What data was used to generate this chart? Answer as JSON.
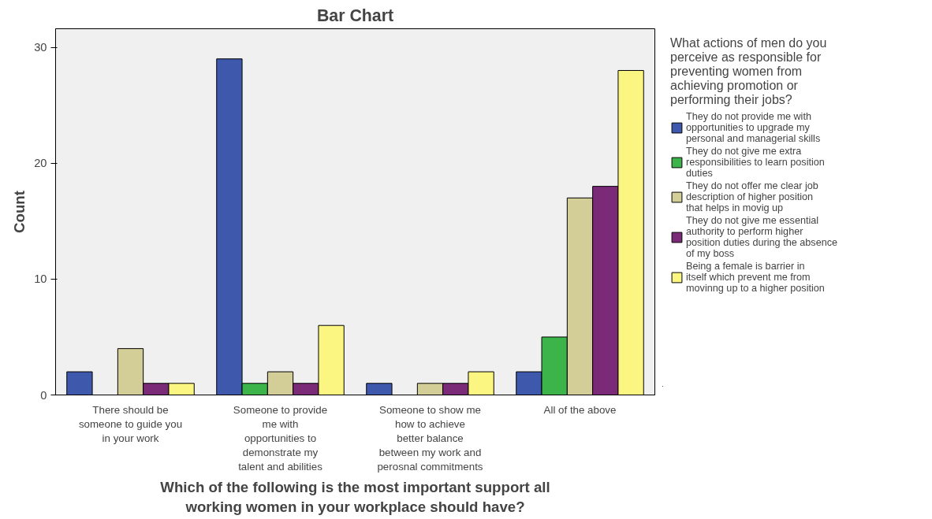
{
  "chart_data": {
    "type": "bar",
    "title": "Bar Chart",
    "xlabel": "Which of the following is the most important support all working women in your workplace should have?",
    "ylabel": "Count",
    "legend_title": "What actions of men do you perceive as responsible for preventing women from achieving promotion or performing their jobs?",
    "categories": [
      "There should be someone to guide you in your work",
      "Someone to provide me with opportunities to demonstrate my talent and abilities",
      "Someone to show me how to achieve better balance between my work and perosnal commitments",
      "All of the above"
    ],
    "series": [
      {
        "name": "They do not provide me with opportunities to upgrade my personal and managerial skills",
        "color": "#3e58ac",
        "values": [
          2,
          29,
          1,
          2
        ]
      },
      {
        "name": "They do not give me extra responsibilities to learn position duties",
        "color": "#3cb44a",
        "values": [
          0,
          1,
          0,
          5
        ]
      },
      {
        "name": "They do not offer me clear job description of higher position that helps in movig up",
        "color": "#d3ce97",
        "values": [
          4,
          2,
          1,
          17
        ]
      },
      {
        "name": "They do not give me essential authority to perform higher position duties during the absence of my boss",
        "color": "#7b2a78",
        "values": [
          1,
          1,
          1,
          18
        ]
      },
      {
        "name": "Being a female is barrier in itself which prevent me from movinng up to a higher position",
        "color": "#fbf582",
        "values": [
          1,
          6,
          2,
          28
        ]
      }
    ],
    "ylim": [
      0,
      31.6
    ],
    "yticks": [
      0,
      10,
      20,
      30
    ],
    "grid": false,
    "legend": "right"
  }
}
